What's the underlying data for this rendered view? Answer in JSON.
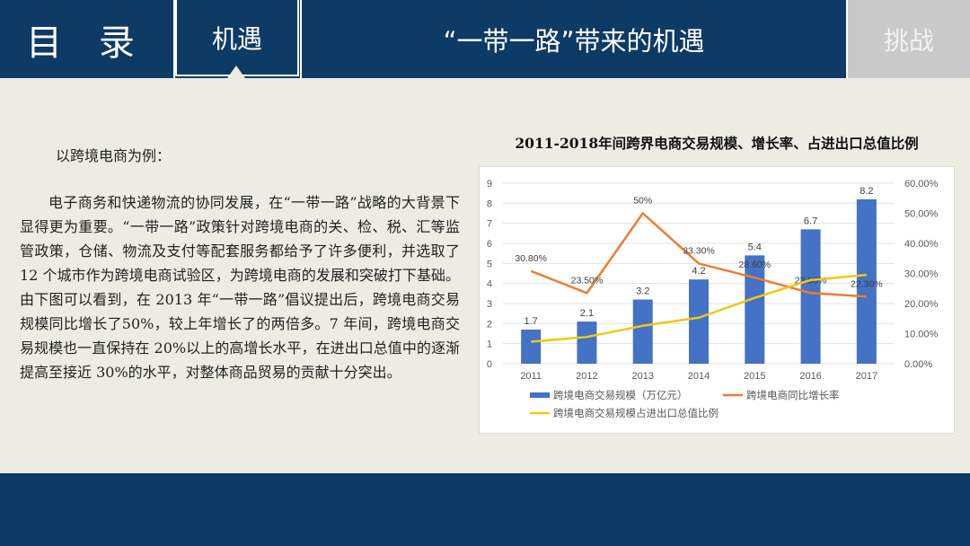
{
  "nav": {
    "title": "目 录",
    "active_tab": "机遇",
    "heading": "“一带一路”带来的机遇",
    "inactive_tab": "挑战"
  },
  "content": {
    "intro": "以跨境电商为例：",
    "paragraph": "电子商务和快递物流的协同发展，在“一带一路”战略的大背景下显得更为重要。“一带一路”政策针对跨境电商的关、检、税、汇等监管政策，仓储、物流及支付等配套服务都给予了许多便利，并选取了 12 个城市作为跨境电商试验区，为跨境电商的发展和突破打下基础。由下图可以看到，在 2013 年“一带一路”倡议提出后，跨境电商交易规模同比增长了50%，较上年增长了的两倍多。7 年间，跨境电商交易规模也一直保持在 20%以上的高增长水平，在进出口总值中的逐渐提高至接近 30%的水平，对整体商品贸易的贡献十分突出。"
  },
  "chart_data": {
    "type": "bar",
    "title": "2011-2018年间跨界电商交易规模、增长率、占进出口总值比例",
    "categories": [
      "2011",
      "2012",
      "2013",
      "2014",
      "2015",
      "2016",
      "2017"
    ],
    "ylim": [
      0,
      9
    ],
    "y_ticks": [
      "0",
      "1",
      "2",
      "3",
      "4",
      "5",
      "6",
      "7",
      "8",
      "9"
    ],
    "y2lim": [
      0,
      60
    ],
    "y2_ticks": [
      "0.00%",
      "10.00%",
      "20.00%",
      "30.00%",
      "40.00%",
      "50.00%",
      "60.00%"
    ],
    "grid": true,
    "legend_position": "bottom",
    "series": [
      {
        "name": "跨境电商交易规模（万亿元）",
        "kind": "bar",
        "axis": "left",
        "color": "#4472c4",
        "values": [
          1.7,
          2.1,
          3.2,
          4.2,
          5.4,
          6.7,
          8.2
        ],
        "labels": [
          "1.7",
          "2.1",
          "3.2",
          "4.2",
          "5.4",
          "6.7",
          "8.2"
        ]
      },
      {
        "name": "跨境电商同比增长率",
        "kind": "line",
        "axis": "right",
        "color": "#ed7d31",
        "values": [
          30.8,
          23.5,
          50,
          33.3,
          28.6,
          23.5,
          22.3
        ],
        "labels": [
          "30.80%",
          "23.50%",
          "50%",
          "33.30%",
          "28.60%",
          "23.50%",
          "22.30%"
        ]
      },
      {
        "name": "跨境电商交易规模占进出口总值比例",
        "kind": "line",
        "axis": "right",
        "color": "#f2c811",
        "values": [
          7.3,
          8.9,
          12.6,
          15.3,
          21.9,
          27.8,
          29.5
        ],
        "labels": []
      }
    ]
  }
}
